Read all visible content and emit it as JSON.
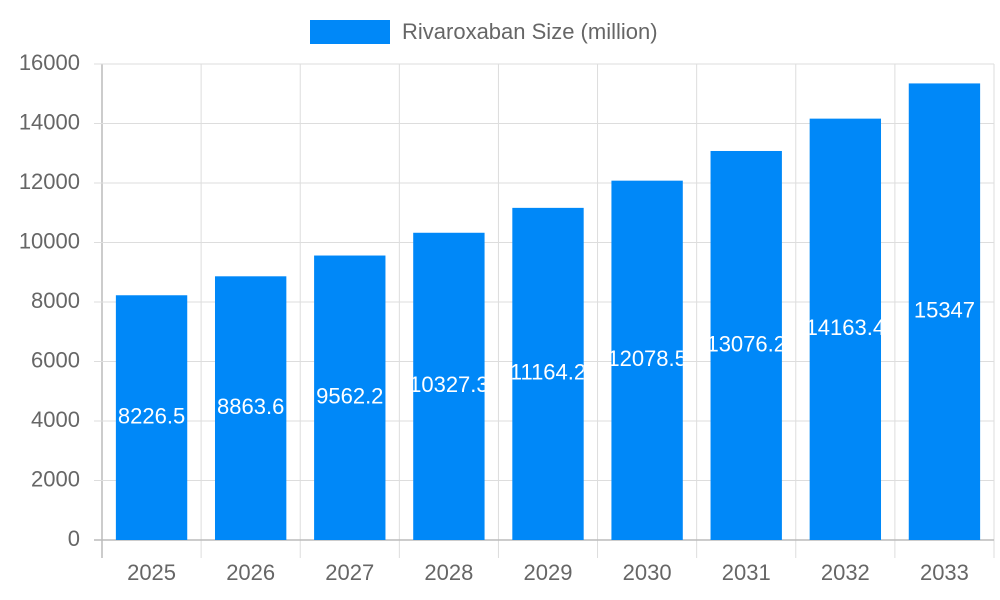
{
  "chart_data": {
    "type": "bar",
    "legend": "Rivaroxaban Size (million)",
    "categories": [
      "2025",
      "2026",
      "2027",
      "2028",
      "2029",
      "2030",
      "2031",
      "2032",
      "2033"
    ],
    "values": [
      8226.5,
      8863.6,
      9562.2,
      10327.3,
      11164.2,
      12078.5,
      13076.2,
      14163.4,
      15347
    ],
    "color": "#0088f8",
    "ylim": [
      0,
      16000
    ],
    "yticks": [
      0,
      2000,
      4000,
      6000,
      8000,
      10000,
      12000,
      14000,
      16000
    ],
    "grid": true
  }
}
